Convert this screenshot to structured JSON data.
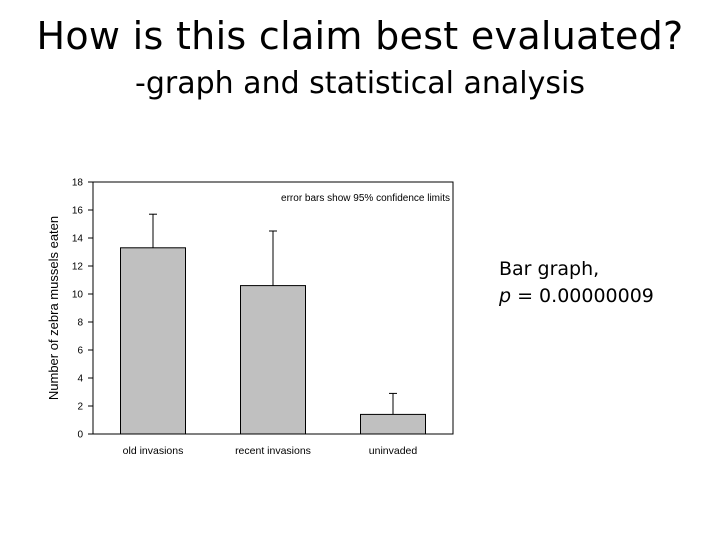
{
  "slide": {
    "title": "How is this claim best evaluated?",
    "subtitle": "-graph and statistical analysis",
    "note_line1": "Bar graph,",
    "note_p_symbol": "p",
    "note_p_rest": " = 0.00000009"
  },
  "colors": {
    "bar_fill": "#c0c0c0",
    "bar_stroke": "#000000",
    "axis": "#000000",
    "text": "#000000"
  },
  "chart_data": {
    "type": "bar",
    "categories": [
      "old invasions",
      "recent invasions",
      "uninvaded"
    ],
    "values": [
      13.3,
      10.6,
      1.4
    ],
    "error_upper": [
      15.7,
      14.5,
      2.9
    ],
    "ylabel": "Number of zebra mussels eaten",
    "xlabel": "",
    "ylim": [
      0,
      18
    ],
    "yticks": [
      0,
      2,
      4,
      6,
      8,
      10,
      12,
      14,
      16,
      18
    ],
    "annotation": "error bars show 95% confidence limits",
    "grid": false
  }
}
